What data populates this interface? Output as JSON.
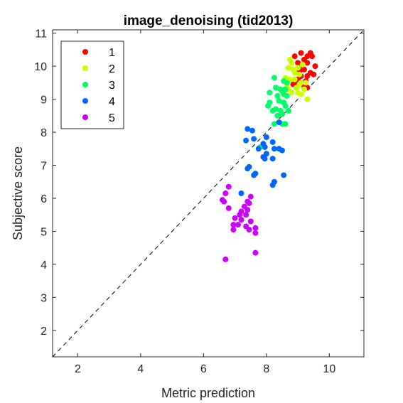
{
  "chart_data": {
    "type": "scatter",
    "title": "image_denoising (tid2013)",
    "xlabel": "Metric prediction",
    "ylabel": "Subjective score",
    "xlim": [
      1.2,
      11.1
    ],
    "ylim": [
      1.2,
      11.1
    ],
    "xticks": [
      2,
      4,
      6,
      8,
      10
    ],
    "yticks": [
      2,
      3,
      4,
      5,
      6,
      7,
      8,
      9,
      10,
      11
    ],
    "grid": false,
    "legend": "top-left",
    "reference_line": "y = x (dashed)",
    "series": [
      {
        "name": "1",
        "color": "#ff0000",
        "points": [
          [
            8.9,
            10.3
          ],
          [
            9.1,
            10.4
          ],
          [
            9.3,
            10.3
          ],
          [
            9.4,
            10.4
          ],
          [
            9.45,
            10.3
          ],
          [
            9.0,
            10.1
          ],
          [
            9.2,
            10.2
          ],
          [
            9.3,
            10.1
          ],
          [
            9.55,
            10.0
          ],
          [
            9.1,
            10.0
          ],
          [
            9.2,
            9.9
          ],
          [
            9.4,
            9.8
          ],
          [
            9.3,
            9.7
          ],
          [
            9.5,
            9.75
          ],
          [
            9.1,
            9.7
          ],
          [
            9.0,
            9.6
          ],
          [
            9.25,
            9.55
          ],
          [
            8.95,
            9.45
          ],
          [
            9.2,
            9.4
          ],
          [
            9.3,
            9.35
          ],
          [
            8.85,
            9.45
          ],
          [
            9.05,
            9.85
          ]
        ]
      },
      {
        "name": "2",
        "color": "#ccff00",
        "points": [
          [
            8.75,
            10.2
          ],
          [
            8.8,
            10.1
          ],
          [
            8.7,
            9.95
          ],
          [
            8.85,
            9.9
          ],
          [
            9.0,
            9.95
          ],
          [
            9.15,
            10.05
          ],
          [
            8.9,
            9.8
          ],
          [
            9.05,
            9.75
          ],
          [
            8.6,
            9.65
          ],
          [
            8.75,
            9.6
          ],
          [
            8.9,
            9.6
          ],
          [
            9.1,
            9.5
          ],
          [
            9.05,
            9.45
          ],
          [
            8.95,
            9.35
          ],
          [
            9.2,
            9.3
          ],
          [
            8.7,
            9.3
          ],
          [
            8.8,
            9.2
          ],
          [
            9.0,
            9.2
          ],
          [
            9.1,
            9.15
          ],
          [
            9.25,
            9.5
          ],
          [
            9.3,
            9.0
          ],
          [
            8.65,
            9.45
          ]
        ]
      },
      {
        "name": "3",
        "color": "#00ff66",
        "points": [
          [
            8.25,
            9.65
          ],
          [
            8.55,
            9.55
          ],
          [
            8.65,
            9.5
          ],
          [
            8.3,
            9.35
          ],
          [
            8.45,
            9.3
          ],
          [
            8.5,
            9.25
          ],
          [
            8.6,
            9.3
          ],
          [
            8.35,
            9.1
          ],
          [
            8.55,
            9.15
          ],
          [
            8.65,
            9.1
          ],
          [
            8.1,
            8.9
          ],
          [
            8.4,
            8.95
          ],
          [
            8.55,
            8.9
          ],
          [
            8.6,
            8.8
          ],
          [
            8.3,
            8.7
          ],
          [
            8.2,
            8.65
          ],
          [
            8.45,
            8.65
          ],
          [
            8.7,
            8.65
          ],
          [
            8.05,
            8.8
          ],
          [
            8.35,
            8.5
          ],
          [
            8.5,
            8.55
          ],
          [
            8.25,
            8.25
          ],
          [
            8.5,
            8.25
          ],
          [
            8.6,
            8.25
          ],
          [
            7.8,
            7.55
          ],
          [
            8.1,
            9.2
          ]
        ]
      },
      {
        "name": "4",
        "color": "#0066ff",
        "points": [
          [
            7.4,
            8.1
          ],
          [
            7.55,
            8.05
          ],
          [
            8.4,
            8.3
          ],
          [
            7.35,
            7.75
          ],
          [
            7.6,
            7.8
          ],
          [
            8.0,
            7.85
          ],
          [
            7.9,
            7.65
          ],
          [
            8.2,
            7.7
          ],
          [
            7.95,
            7.55
          ],
          [
            8.25,
            7.5
          ],
          [
            8.4,
            7.5
          ],
          [
            7.75,
            7.5
          ],
          [
            8.5,
            7.45
          ],
          [
            8.0,
            7.35
          ],
          [
            7.9,
            7.25
          ],
          [
            8.2,
            7.2
          ],
          [
            7.95,
            7.2
          ],
          [
            7.45,
            6.95
          ],
          [
            7.4,
            6.9
          ],
          [
            7.65,
            6.75
          ],
          [
            7.6,
            6.7
          ],
          [
            8.25,
            6.5
          ],
          [
            8.2,
            6.4
          ],
          [
            8.55,
            6.7
          ],
          [
            7.2,
            6.15
          ]
        ]
      },
      {
        "name": "5",
        "color": "#cc00ff",
        "points": [
          [
            6.8,
            6.35
          ],
          [
            6.7,
            6.15
          ],
          [
            7.5,
            6.05
          ],
          [
            6.6,
            5.95
          ],
          [
            6.65,
            5.9
          ],
          [
            7.4,
            5.9
          ],
          [
            7.45,
            5.85
          ],
          [
            6.8,
            5.7
          ],
          [
            7.3,
            5.75
          ],
          [
            7.2,
            5.6
          ],
          [
            7.4,
            5.65
          ],
          [
            7.35,
            5.5
          ],
          [
            7.15,
            5.5
          ],
          [
            7.0,
            5.4
          ],
          [
            7.2,
            5.35
          ],
          [
            7.5,
            5.3
          ],
          [
            6.95,
            5.2
          ],
          [
            7.1,
            5.2
          ],
          [
            7.35,
            5.15
          ],
          [
            6.95,
            5.05
          ],
          [
            7.45,
            5.05
          ],
          [
            7.65,
            5.1
          ],
          [
            7.65,
            4.95
          ],
          [
            6.7,
            4.15
          ],
          [
            7.65,
            4.35
          ]
        ]
      }
    ]
  }
}
